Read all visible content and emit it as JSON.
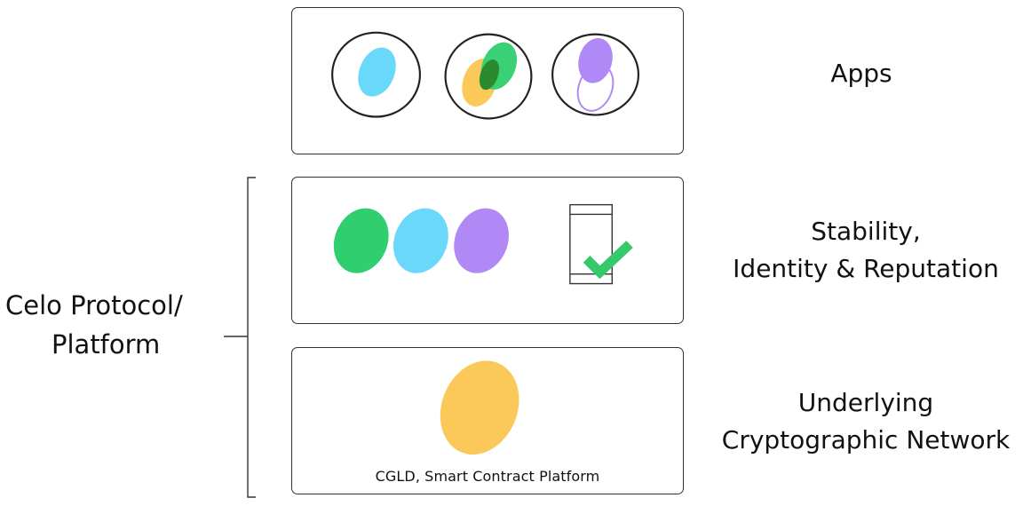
{
  "layers": {
    "apps": {
      "label": "Apps"
    },
    "stability": {
      "label_line1": "Stability,",
      "label_line2": "Identity & Reputation"
    },
    "network": {
      "label_line1": "Underlying",
      "label_line2": "Cryptographic Network",
      "caption": "CGLD, Smart Contract Platform"
    }
  },
  "platform_group": {
    "label_line1": "Celo Protocol/",
    "label_line2": "Platform"
  },
  "colors": {
    "blue": "#6ad8fa",
    "green": "#2fcf6f",
    "dark_green": "#2b8a2e",
    "orange": "#fbc95a",
    "purple": "#b089f6",
    "check": "#35c96a",
    "stroke": "#333333"
  },
  "icons": {
    "app_icons": [
      "blue-ellipse-icon",
      "green-orange-overlap-icon",
      "purple-ellipses-icon"
    ],
    "stability_icons": [
      "green-ellipse-icon",
      "blue-ellipse-icon",
      "purple-ellipse-icon",
      "phone-checkmark-icon"
    ],
    "network_icons": [
      "orange-ellipse-icon"
    ]
  }
}
